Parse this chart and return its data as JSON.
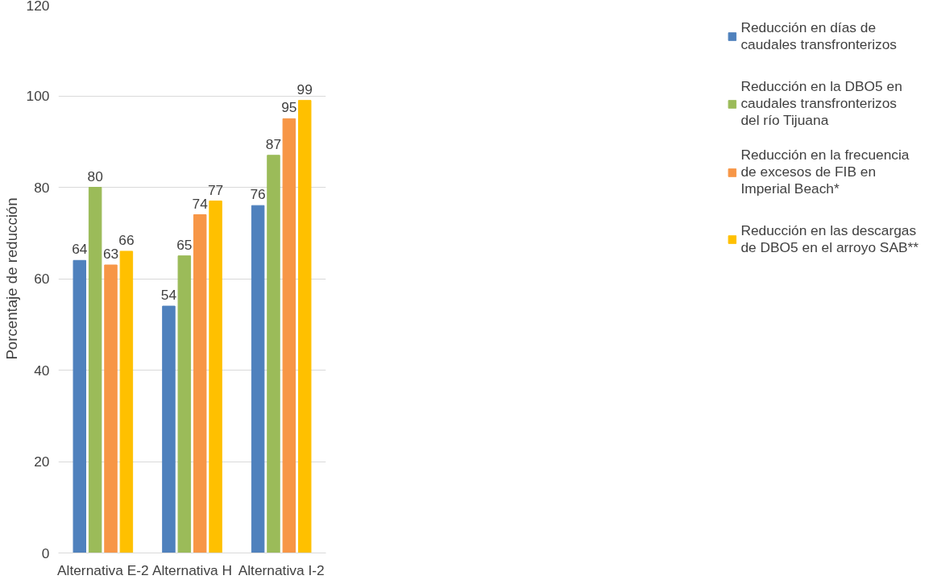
{
  "chart_data": {
    "type": "bar",
    "ylabel": "Porcentaje de reducción",
    "categories": [
      "Alternativa E-2",
      "Alternativa H",
      "Alternativa I-2"
    ],
    "series": [
      {
        "name": "Reducción en días de caudales transfronterizos",
        "color": "#4f81bd",
        "values": [
          64,
          54,
          76
        ]
      },
      {
        "name": "Reducción en la DBO5 en caudales transfronterizos del río Tijuana",
        "color": "#9bbb59",
        "values": [
          80,
          65,
          87
        ]
      },
      {
        "name": "Reducción en la frecuencia de excesos de FIB en Imperial Beach*",
        "color": "#f79646",
        "values": [
          63,
          74,
          95
        ]
      },
      {
        "name": "Reducción en las descargas de DBO5 en el arroyo SAB**",
        "color": "#ffc000",
        "values": [
          66,
          77,
          99
        ]
      }
    ],
    "ylim": [
      0,
      120
    ],
    "yticks": [
      0,
      20,
      40,
      60,
      80,
      100,
      120
    ],
    "grid": "y",
    "legend": "right",
    "data_labels": true
  }
}
